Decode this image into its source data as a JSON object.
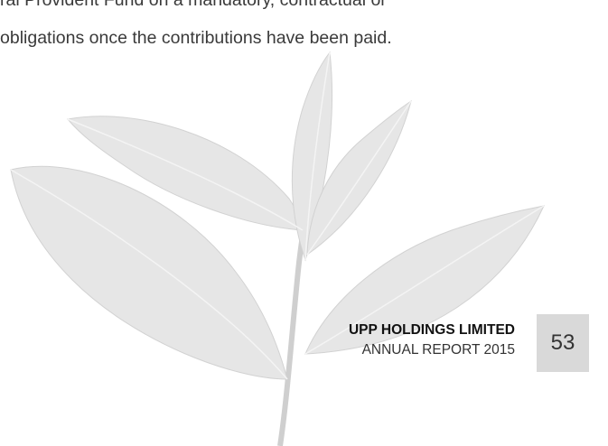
{
  "body": {
    "lines": [
      "ral Provident Fund on a mandatory, contractual or",
      "obligations once the contributions have been paid."
    ]
  },
  "footer": {
    "company": "UPP HOLDINGS LIMITED",
    "report": "ANNUAL REPORT 2015",
    "page_number": "53"
  }
}
